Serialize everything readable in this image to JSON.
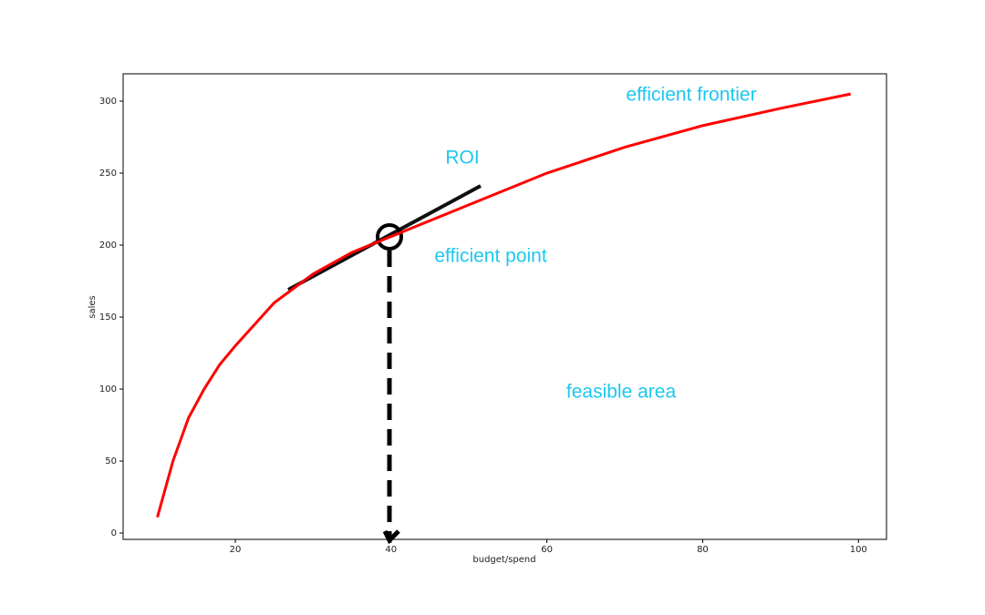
{
  "chart_data": {
    "type": "line",
    "xlabel": "budget/spend",
    "ylabel": "sales",
    "x": [
      10,
      12,
      14,
      16,
      18,
      20,
      25,
      30,
      35,
      40,
      50,
      60,
      70,
      80,
      90,
      99
    ],
    "series": [
      {
        "name": "efficient frontier",
        "color": "#ff0000",
        "values": [
          11,
          50,
          80,
          100,
          117,
          130,
          160,
          180,
          195,
          206,
          228,
          250,
          268,
          283,
          295,
          305
        ]
      }
    ],
    "xlim": [
      5.6,
      103.6
    ],
    "xticks": [
      20,
      40,
      60,
      80,
      100
    ],
    "ylim": [
      -4.4,
      319
    ],
    "yticks": [
      0,
      50,
      100,
      150,
      200,
      250,
      300
    ],
    "annotations": [
      "ROI",
      "efficient point",
      "feasible area"
    ]
  }
}
